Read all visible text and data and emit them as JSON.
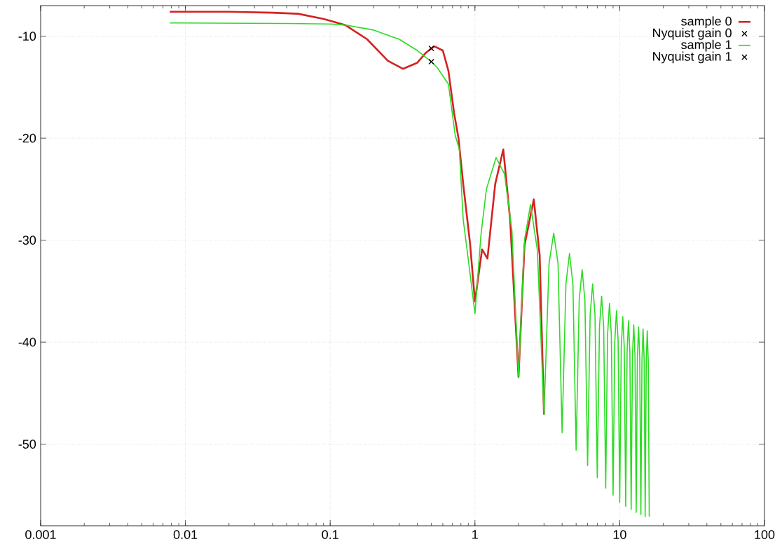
{
  "chart_data": {
    "type": "line",
    "log": "x",
    "grid": true,
    "legend": "top right",
    "xlim": [
      0.001,
      100
    ],
    "xticks": [
      0.001,
      0.01,
      0.1,
      1,
      10,
      100
    ],
    "ylim": [
      -58,
      -7
    ],
    "yticks": [
      -50,
      -40,
      -30,
      -20,
      -10
    ],
    "series": [
      {
        "name": "sample 0",
        "marker": "none",
        "color": "#d42222",
        "x": [
          0.0078,
          0.02,
          0.04,
          0.06,
          0.09,
          0.127,
          0.18,
          0.25,
          0.318,
          0.4,
          0.46,
          0.5,
          0.525,
          0.6,
          0.656,
          0.717,
          0.77,
          0.83,
          0.925,
          1,
          1.12,
          1.22,
          1.38,
          1.57,
          1.75,
          2,
          2.2,
          2.55,
          2.8,
          3
        ],
        "values": [
          -7.6,
          -7.6,
          -7.7,
          -7.8,
          -8.3,
          -8.9,
          -10.3,
          -12.4,
          -13.2,
          -12.6,
          -11.6,
          -11.2,
          -11.0,
          -11.4,
          -13.4,
          -17.5,
          -20,
          -24.5,
          -30.3,
          -36.0,
          -30.9,
          -31.8,
          -24.5,
          -21.1,
          -28,
          -43.4,
          -30.5,
          -26.0,
          -31.5,
          -47.1
        ]
      },
      {
        "name": "Nyquist gain 0",
        "type": "scatter",
        "marker": "cross",
        "color": "#000000",
        "x": [
          0.5
        ],
        "values": [
          -11.2
        ]
      },
      {
        "name": "sample 1",
        "marker": "none",
        "color": "#2bdc22",
        "x": [
          0.0078,
          0.05,
          0.1,
          0.127,
          0.2,
          0.3,
          0.4,
          0.5,
          0.55,
          0.656,
          0.73,
          0.78,
          0.83,
          0.92,
          1,
          1.1,
          1.2,
          1.4,
          1.6,
          1.8,
          2,
          2.2,
          2.42,
          2.7,
          3,
          3.25,
          3.5,
          3.75,
          4,
          4.25,
          4.5,
          4.75,
          5,
          5.25,
          5.5,
          5.75,
          6,
          6.25,
          6.5,
          6.75,
          7,
          7.25,
          7.5,
          7.75,
          8,
          8.25,
          8.5,
          8.75,
          9,
          9.25,
          9.5,
          9.75,
          10,
          10.25,
          10.5,
          10.75,
          11,
          11.25,
          11.5,
          11.75,
          12,
          12.25,
          12.5,
          12.75,
          13,
          13.25,
          13.5,
          13.75,
          14,
          14.25,
          14.5,
          14.75,
          15,
          15.25,
          15.5,
          15.75,
          16
        ],
        "values": [
          -8.7,
          -8.75,
          -8.8,
          -8.9,
          -9.4,
          -10.3,
          -11.4,
          -12.5,
          -13.1,
          -14.7,
          -19.7,
          -21.1,
          -28,
          -33,
          -37.2,
          -29.5,
          -25,
          -21.9,
          -23.5,
          -29,
          -43.4,
          -30,
          -26.5,
          -31,
          -47.1,
          -32.3,
          -29.3,
          -32.3,
          -48.9,
          -34.3,
          -31.3,
          -34.3,
          -50.6,
          -35.9,
          -32.9,
          -35.9,
          -52.1,
          -37.3,
          -34.3,
          -37.3,
          -53.3,
          -38.5,
          -35.5,
          -38.5,
          -54.3,
          -39.2,
          -36.2,
          -39.2,
          -55.0,
          -39.9,
          -36.9,
          -39.9,
          -55.7,
          -40.5,
          -37.5,
          -40.5,
          -56.1,
          -40.9,
          -37.9,
          -40.9,
          -56.4,
          -41.3,
          -38.3,
          -41.3,
          -56.7,
          -41.5,
          -38.5,
          -41.5,
          -56.9,
          -41.7,
          -38.7,
          -41.7,
          -57.1,
          -41.9,
          -38.9,
          -41.9,
          -57.1
        ]
      },
      {
        "name": "Nyquist gain 1",
        "type": "scatter",
        "marker": "cross",
        "color": "#000000",
        "x": [
          0.5
        ],
        "values": [
          -12.5
        ]
      }
    ]
  }
}
